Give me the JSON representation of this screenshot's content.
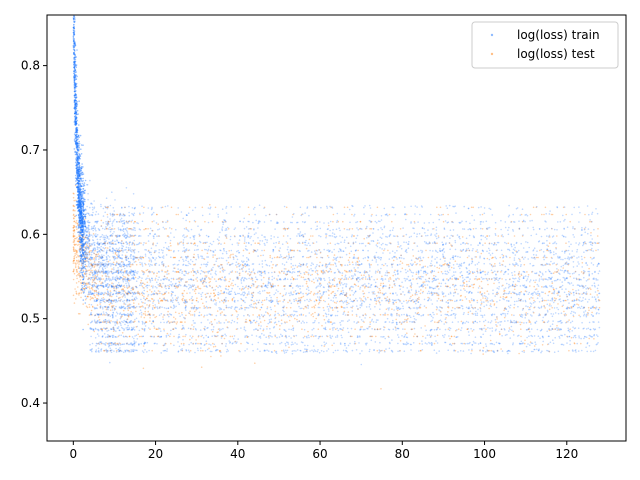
{
  "chart_data": {
    "type": "scatter",
    "title": "",
    "xlabel": "",
    "ylabel": "",
    "xlim": [
      -6.4,
      134.4
    ],
    "ylim": [
      0.355,
      0.86
    ],
    "xticks": [
      0,
      20,
      40,
      60,
      80,
      100,
      120
    ],
    "yticks": [
      0.4,
      0.5,
      0.6,
      0.7,
      0.8
    ],
    "grid": false,
    "legend_position": "top-right",
    "series": [
      {
        "name": "log(loss) train",
        "color": "#1f77ff",
        "x_range": [
          0,
          128
        ],
        "initial_value": 0.82,
        "plateau_mean": 0.545,
        "plateau_spread": [
          0.46,
          0.64
        ],
        "note_values": "dense point cloud decaying rapidly from ~0.82 near x=0 to a plateau ~0.46-0.64 for x>10"
      },
      {
        "name": "log(loss) test",
        "color": "#ff7f0e",
        "x_range": [
          0,
          128
        ],
        "initial_value": 0.6,
        "plateau_mean": 0.53,
        "plateau_spread": [
          0.46,
          0.62
        ],
        "note_values": "sparser orange points, mostly hidden beneath train points"
      }
    ]
  }
}
